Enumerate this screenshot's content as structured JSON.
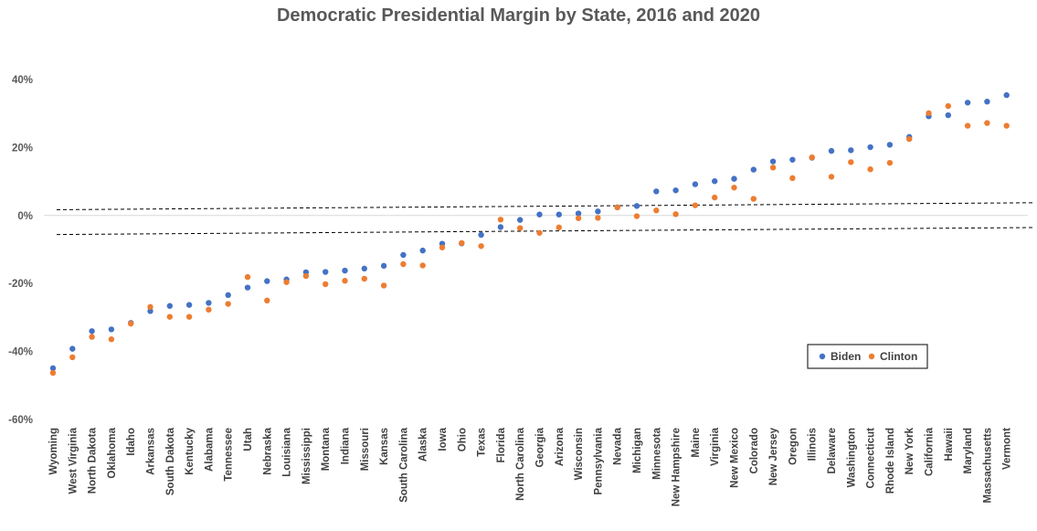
{
  "chart_data": {
    "type": "scatter",
    "title": "Democratic Presidential Margin by State, 2016 and 2020",
    "xlabel": "",
    "ylabel": "",
    "ylim": [
      -60,
      40
    ],
    "yticks": [
      "40%",
      "20%",
      "0%",
      "-20%",
      "-40%",
      "-60%"
    ],
    "ytick_values": [
      40,
      20,
      0,
      -20,
      -40,
      -60
    ],
    "grid": false,
    "legend_position": "bottom-right",
    "categories": [
      "Wyoming",
      "West Virginia",
      "North Dakota",
      "Oklahoma",
      "Idaho",
      "Arkansas",
      "South Dakota",
      "Kentucky",
      "Alabama",
      "Tennessee",
      "Utah",
      "Nebraska",
      "Louisiana",
      "Mississippi",
      "Montana",
      "Indiana",
      "Missouri",
      "Kansas",
      "South Carolina",
      "Alaska",
      "Iowa",
      "Ohio",
      "Texas",
      "Florida",
      "North Carolina",
      "Georgia",
      "Arizona",
      "Wisconsin",
      "Pennsylvania",
      "Nevada",
      "Michigan",
      "Minnesota",
      "New Hampshire",
      "Maine",
      "Virginia",
      "New Mexico",
      "Colorado",
      "New Jersey",
      "Oregon",
      "Illinois",
      "Delaware",
      "Washington",
      "Connecticut",
      "Rhode Island",
      "New York",
      "California",
      "Hawaii",
      "Maryland",
      "Massachusetts",
      "Vermont"
    ],
    "series": [
      {
        "name": "Biden",
        "color": "#4472C4",
        "values": [
          -44.9,
          -39.2,
          -34.0,
          -33.5,
          -31.6,
          -28.1,
          -26.6,
          -26.3,
          -25.7,
          -23.4,
          -21.2,
          -19.3,
          -18.8,
          -16.7,
          -16.6,
          -16.2,
          -15.6,
          -14.8,
          -11.6,
          -10.3,
          -8.3,
          -8.2,
          -5.7,
          -3.4,
          -1.3,
          0.3,
          0.3,
          0.6,
          1.2,
          2.4,
          2.8,
          7.1,
          7.4,
          9.2,
          10.1,
          10.8,
          13.5,
          15.9,
          16.4,
          17.0,
          19.0,
          19.2,
          20.1,
          20.8,
          23.1,
          29.2,
          29.5,
          33.2,
          33.5,
          35.4
        ]
      },
      {
        "name": "Clinton",
        "color": "#ED7D31",
        "values": [
          -46.3,
          -41.7,
          -35.7,
          -36.4,
          -31.8,
          -26.9,
          -29.8,
          -29.8,
          -27.7,
          -26.0,
          -18.1,
          -25.0,
          -19.6,
          -17.8,
          -20.2,
          -19.2,
          -18.6,
          -20.6,
          -14.3,
          -14.7,
          -9.4,
          -8.1,
          -9.0,
          -1.2,
          -3.7,
          -5.1,
          -3.5,
          -0.8,
          -0.7,
          2.4,
          -0.2,
          1.5,
          0.4,
          3.0,
          5.3,
          8.2,
          4.9,
          14.1,
          11.0,
          17.1,
          11.4,
          15.7,
          13.6,
          15.5,
          22.5,
          30.1,
          32.2,
          26.4,
          27.2,
          26.4
        ]
      }
    ],
    "reference_lines": [
      {
        "style": "dashed",
        "from": {
          "category": "Wyoming",
          "y": 1.7
        },
        "to": {
          "category": "Vermont",
          "y": 3.7
        }
      },
      {
        "style": "dashed",
        "from": {
          "category": "Wyoming",
          "y": -5.6
        },
        "to": {
          "category": "Vermont",
          "y": -3.6
        }
      }
    ]
  }
}
